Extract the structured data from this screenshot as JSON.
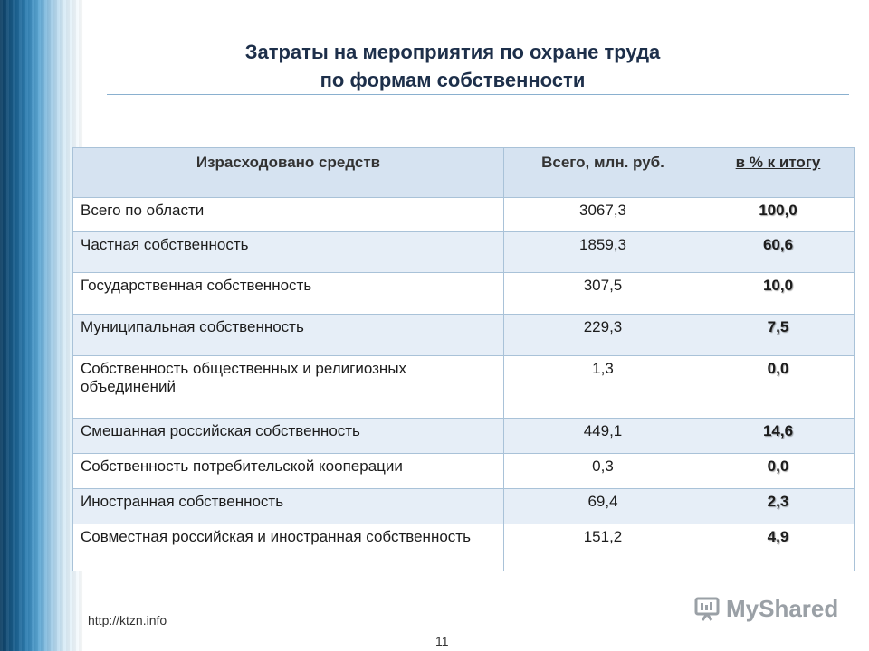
{
  "slide": {
    "title_line1": "Затраты на мероприятия по охране труда",
    "title_line2": "по формам собственности",
    "url": "http://ktzn.info",
    "page_number": "11",
    "logo_text": "MyShared"
  },
  "table": {
    "headers": [
      "Израсходовано средств",
      "Всего, млн. руб.",
      "в % к итогу"
    ],
    "rows": [
      {
        "label": "Всего по области",
        "total": "3067,3",
        "pct": "100,0"
      },
      {
        "label": "Частная собственность",
        "total": "1859,3",
        "pct": "60,6"
      },
      {
        "label": "Государственная собственность",
        "total": "307,5",
        "pct": "10,0"
      },
      {
        "label": "Муниципальная собственность",
        "total": "229,3",
        "pct": "7,5"
      },
      {
        "label": "Собственность общественных и религиозных объединений",
        "total": "1,3",
        "pct": "0,0"
      },
      {
        "label": "Смешанная российская собственность",
        "total": "449,1",
        "pct": "14,6"
      },
      {
        "label": "Собственность потребительской кооперации",
        "total": "0,3",
        "pct": "0,0"
      },
      {
        "label": "Иностранная собственность",
        "total": "69,4",
        "pct": "2,3"
      },
      {
        "label": "Совместная российская и иностранная собственность",
        "total": "151,2",
        "pct": "4,9"
      }
    ]
  }
}
